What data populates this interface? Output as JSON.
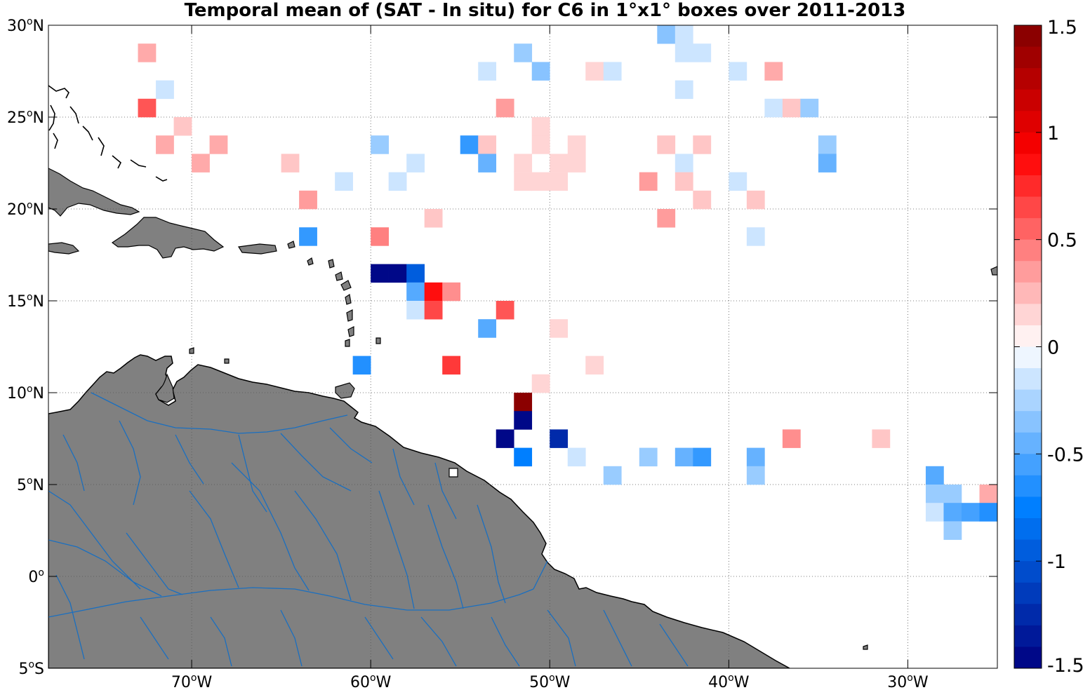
{
  "title": "Temporal mean of (SAT - In situ) for C6 in 1°x1° boxes over 2011-2013",
  "map": {
    "lon_range": [
      -78,
      -25
    ],
    "lat_range": [
      -5,
      30
    ],
    "land_color": "#808080",
    "river_color": "#1a6fc0",
    "x_ticks": [
      {
        "lon": -70,
        "label": "70",
        "sup": "o",
        "suffix": "W"
      },
      {
        "lon": -60,
        "label": "60",
        "sup": "o",
        "suffix": "W"
      },
      {
        "lon": -50,
        "label": "50",
        "sup": "o",
        "suffix": "W"
      },
      {
        "lon": -40,
        "label": "40",
        "sup": "o",
        "suffix": "W"
      },
      {
        "lon": -30,
        "label": "30",
        "sup": "o",
        "suffix": "W"
      }
    ],
    "y_ticks": [
      {
        "lat": 30,
        "label": "30",
        "sup": "o",
        "suffix": "N"
      },
      {
        "lat": 25,
        "label": "25",
        "sup": "o",
        "suffix": "N"
      },
      {
        "lat": 20,
        "label": "20",
        "sup": "o",
        "suffix": "N"
      },
      {
        "lat": 15,
        "label": "15",
        "sup": "o",
        "suffix": "N"
      },
      {
        "lat": 10,
        "label": "10",
        "sup": "o",
        "suffix": "N"
      },
      {
        "lat": 5,
        "label": "5",
        "sup": "o",
        "suffix": "N"
      },
      {
        "lat": 0,
        "label": "0",
        "sup": "o",
        "suffix": ""
      },
      {
        "lat": -5,
        "label": "5",
        "sup": "o",
        "suffix": "S"
      }
    ]
  },
  "colorbar": {
    "range": [
      -1.5,
      1.5
    ],
    "levels": 30,
    "ticks": [
      {
        "value": 1.5,
        "label": "1.5"
      },
      {
        "value": 1,
        "label": "1"
      },
      {
        "value": 0.5,
        "label": "0.5"
      },
      {
        "value": 0,
        "label": "0"
      },
      {
        "value": -0.5,
        "label": "-0.5"
      },
      {
        "value": -1,
        "label": "-1"
      },
      {
        "value": -1.5,
        "label": "-1.5"
      }
    ]
  },
  "chart_data": {
    "type": "heatmap",
    "title": "Temporal mean of (SAT - In situ) for C6 in 1°x1° boxes over 2011-2013",
    "xlabel": "",
    "ylabel": "",
    "box_size_deg": 1,
    "xlim": [
      -78,
      -25
    ],
    "ylim": [
      -5,
      30
    ],
    "colorbar_range": [
      -1.5,
      1.5
    ],
    "cells": [
      {
        "lon": -43.5,
        "lat": 29.5,
        "v": -0.35
      },
      {
        "lon": -42.5,
        "lat": 29.5,
        "v": -0.15
      },
      {
        "lon": -42.5,
        "lat": 28.5,
        "v": -0.15
      },
      {
        "lon": -41.5,
        "lat": 28.5,
        "v": -0.15
      },
      {
        "lon": -72.5,
        "lat": 28.5,
        "v": 0.3
      },
      {
        "lon": -51.5,
        "lat": 28.5,
        "v": -0.3
      },
      {
        "lon": -53.5,
        "lat": 27.5,
        "v": -0.15
      },
      {
        "lon": -50.5,
        "lat": 27.5,
        "v": -0.35
      },
      {
        "lon": -47.5,
        "lat": 27.5,
        "v": 0.15
      },
      {
        "lon": -46.5,
        "lat": 27.5,
        "v": -0.15
      },
      {
        "lon": -39.5,
        "lat": 27.5,
        "v": -0.15
      },
      {
        "lon": -37.5,
        "lat": 27.5,
        "v": 0.3
      },
      {
        "lon": -71.5,
        "lat": 26.5,
        "v": -0.15
      },
      {
        "lon": -42.5,
        "lat": 26.5,
        "v": -0.15
      },
      {
        "lon": -72.5,
        "lat": 25.5,
        "v": 0.6
      },
      {
        "lon": -52.5,
        "lat": 25.5,
        "v": 0.35
      },
      {
        "lon": -37.5,
        "lat": 25.5,
        "v": -0.15
      },
      {
        "lon": -36.5,
        "lat": 25.5,
        "v": 0.2
      },
      {
        "lon": -35.5,
        "lat": 25.5,
        "v": -0.3
      },
      {
        "lon": -70.5,
        "lat": 24.5,
        "v": 0.2
      },
      {
        "lon": -50.5,
        "lat": 24.5,
        "v": 0.15
      },
      {
        "lon": -71.5,
        "lat": 23.5,
        "v": 0.3
      },
      {
        "lon": -68.5,
        "lat": 23.5,
        "v": 0.3
      },
      {
        "lon": -59.5,
        "lat": 23.5,
        "v": -0.3
      },
      {
        "lon": -54.5,
        "lat": 23.5,
        "v": -0.6
      },
      {
        "lon": -53.5,
        "lat": 23.5,
        "v": 0.2
      },
      {
        "lon": -50.5,
        "lat": 23.5,
        "v": 0.15
      },
      {
        "lon": -48.5,
        "lat": 23.5,
        "v": 0.15
      },
      {
        "lon": -43.5,
        "lat": 23.5,
        "v": 0.2
      },
      {
        "lon": -41.5,
        "lat": 23.5,
        "v": 0.2
      },
      {
        "lon": -34.5,
        "lat": 23.5,
        "v": -0.3
      },
      {
        "lon": -69.5,
        "lat": 22.5,
        "v": 0.3
      },
      {
        "lon": -64.5,
        "lat": 22.5,
        "v": 0.2
      },
      {
        "lon": -57.5,
        "lat": 22.5,
        "v": -0.15
      },
      {
        "lon": -53.5,
        "lat": 22.5,
        "v": -0.45
      },
      {
        "lon": -51.5,
        "lat": 22.5,
        "v": 0.15
      },
      {
        "lon": -49.5,
        "lat": 22.5,
        "v": 0.15
      },
      {
        "lon": -48.5,
        "lat": 22.5,
        "v": 0.15
      },
      {
        "lon": -42.5,
        "lat": 22.5,
        "v": -0.15
      },
      {
        "lon": -34.5,
        "lat": 22.5,
        "v": -0.45
      },
      {
        "lon": -61.5,
        "lat": 21.5,
        "v": -0.15
      },
      {
        "lon": -58.5,
        "lat": 21.5,
        "v": -0.15
      },
      {
        "lon": -51.5,
        "lat": 21.5,
        "v": 0.15
      },
      {
        "lon": -50.5,
        "lat": 21.5,
        "v": 0.15
      },
      {
        "lon": -49.5,
        "lat": 21.5,
        "v": 0.15
      },
      {
        "lon": -44.5,
        "lat": 21.5,
        "v": 0.35
      },
      {
        "lon": -42.5,
        "lat": 21.5,
        "v": 0.2
      },
      {
        "lon": -39.5,
        "lat": 21.5,
        "v": -0.15
      },
      {
        "lon": -63.5,
        "lat": 20.5,
        "v": 0.35
      },
      {
        "lon": -41.5,
        "lat": 20.5,
        "v": 0.2
      },
      {
        "lon": -38.5,
        "lat": 20.5,
        "v": 0.2
      },
      {
        "lon": -56.5,
        "lat": 19.5,
        "v": 0.2
      },
      {
        "lon": -43.5,
        "lat": 19.5,
        "v": 0.35
      },
      {
        "lon": -63.5,
        "lat": 18.5,
        "v": -0.6
      },
      {
        "lon": -59.5,
        "lat": 18.5,
        "v": 0.45
      },
      {
        "lon": -38.5,
        "lat": 18.5,
        "v": -0.15
      },
      {
        "lon": -59.5,
        "lat": 16.5,
        "v": -1.45
      },
      {
        "lon": -58.5,
        "lat": 16.5,
        "v": -1.45
      },
      {
        "lon": -57.5,
        "lat": 16.5,
        "v": -0.95
      },
      {
        "lon": -57.5,
        "lat": 15.5,
        "v": -0.5
      },
      {
        "lon": -56.5,
        "lat": 15.5,
        "v": 0.85
      },
      {
        "lon": -55.5,
        "lat": 15.5,
        "v": 0.4
      },
      {
        "lon": -57.5,
        "lat": 14.5,
        "v": -0.15
      },
      {
        "lon": -56.5,
        "lat": 14.5,
        "v": 0.65
      },
      {
        "lon": -52.5,
        "lat": 14.5,
        "v": 0.6
      },
      {
        "lon": -53.5,
        "lat": 13.5,
        "v": -0.5
      },
      {
        "lon": -49.5,
        "lat": 13.5,
        "v": 0.15
      },
      {
        "lon": -60.5,
        "lat": 11.5,
        "v": -0.65
      },
      {
        "lon": -55.5,
        "lat": 11.5,
        "v": 0.7
      },
      {
        "lon": -47.5,
        "lat": 11.5,
        "v": 0.15
      },
      {
        "lon": -50.5,
        "lat": 10.5,
        "v": 0.15
      },
      {
        "lon": -51.5,
        "lat": 9.5,
        "v": 1.45
      },
      {
        "lon": -51.5,
        "lat": 8.5,
        "v": -1.45
      },
      {
        "lon": -52.5,
        "lat": 7.5,
        "v": -1.45
      },
      {
        "lon": -49.5,
        "lat": 7.5,
        "v": -1.25
      },
      {
        "lon": -36.5,
        "lat": 7.5,
        "v": 0.4
      },
      {
        "lon": -31.5,
        "lat": 7.5,
        "v": 0.2
      },
      {
        "lon": -51.5,
        "lat": 6.5,
        "v": -0.75
      },
      {
        "lon": -48.5,
        "lat": 6.5,
        "v": -0.15
      },
      {
        "lon": -44.5,
        "lat": 6.5,
        "v": -0.3
      },
      {
        "lon": -42.5,
        "lat": 6.5,
        "v": -0.45
      },
      {
        "lon": -41.5,
        "lat": 6.5,
        "v": -0.6
      },
      {
        "lon": -38.5,
        "lat": 6.5,
        "v": -0.45
      },
      {
        "lon": -46.5,
        "lat": 5.5,
        "v": -0.3
      },
      {
        "lon": -38.5,
        "lat": 5.5,
        "v": -0.3
      },
      {
        "lon": -28.5,
        "lat": 5.5,
        "v": -0.5
      },
      {
        "lon": -28.5,
        "lat": 4.5,
        "v": -0.3
      },
      {
        "lon": -27.5,
        "lat": 4.5,
        "v": -0.3
      },
      {
        "lon": -25.5,
        "lat": 4.5,
        "v": 0.3
      },
      {
        "lon": -28.5,
        "lat": 3.5,
        "v": -0.15
      },
      {
        "lon": -27.5,
        "lat": 3.5,
        "v": -0.5
      },
      {
        "lon": -26.5,
        "lat": 3.5,
        "v": -0.55
      },
      {
        "lon": -25.5,
        "lat": 3.5,
        "v": -0.65
      },
      {
        "lon": -27.5,
        "lat": 2.5,
        "v": -0.3
      }
    ]
  }
}
